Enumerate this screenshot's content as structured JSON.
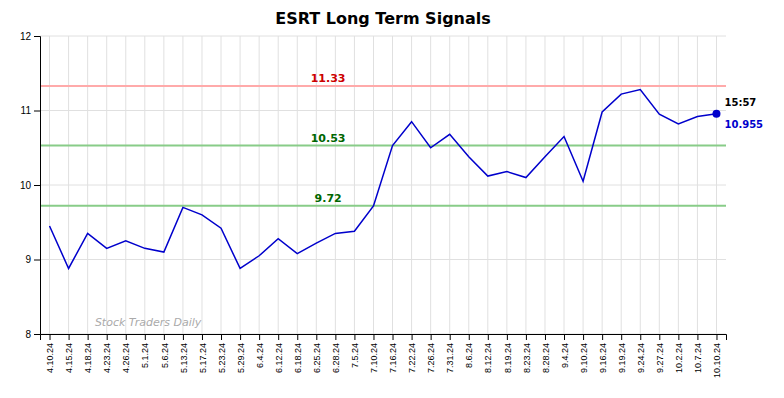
{
  "chart_data": {
    "type": "line",
    "title": "ESRT Long Term Signals",
    "categories": [
      "4.10.24",
      "4.15.24",
      "4.18.24",
      "4.23.24",
      "4.26.24",
      "5.1.24",
      "5.6.24",
      "5.13.24",
      "5.17.24",
      "5.23.24",
      "5.29.24",
      "6.4.24",
      "6.12.24",
      "6.18.24",
      "6.25.24",
      "6.28.24",
      "7.5.24",
      "7.10.24",
      "7.16.24",
      "7.22.24",
      "7.26.24",
      "7.31.24",
      "8.6.24",
      "8.12.24",
      "8.19.24",
      "8.23.24",
      "8.28.24",
      "9.4.24",
      "9.10.24",
      "9.16.24",
      "9.19.24",
      "9.24.24",
      "9.27.24",
      "10.2.24",
      "10.7.24",
      "10.10.24"
    ],
    "values": [
      9.45,
      8.88,
      9.35,
      9.15,
      9.25,
      9.15,
      9.1,
      9.7,
      9.6,
      9.42,
      8.88,
      9.05,
      9.28,
      9.08,
      9.22,
      9.35,
      9.38,
      9.72,
      10.53,
      10.85,
      10.5,
      10.68,
      10.38,
      10.12,
      10.18,
      10.1,
      10.38,
      10.65,
      10.05,
      10.98,
      11.22,
      11.28,
      10.95,
      10.82,
      10.92,
      10.955
    ],
    "color": "#0000cc",
    "ylim": [
      8,
      12
    ],
    "yticks": [
      8,
      9,
      10,
      11,
      12
    ],
    "grid": true,
    "reference_lines": [
      {
        "value": 11.33,
        "color": "#ffaaaa",
        "label_color": "#cc0000"
      },
      {
        "value": 10.53,
        "color": "#88cc88",
        "label_color": "#006600"
      },
      {
        "value": 9.72,
        "color": "#88cc88",
        "label_color": "#006600"
      }
    ],
    "annotations": [
      {
        "text": "15:57"
      }
    ],
    "watermark": "Stock Traders Daily"
  }
}
